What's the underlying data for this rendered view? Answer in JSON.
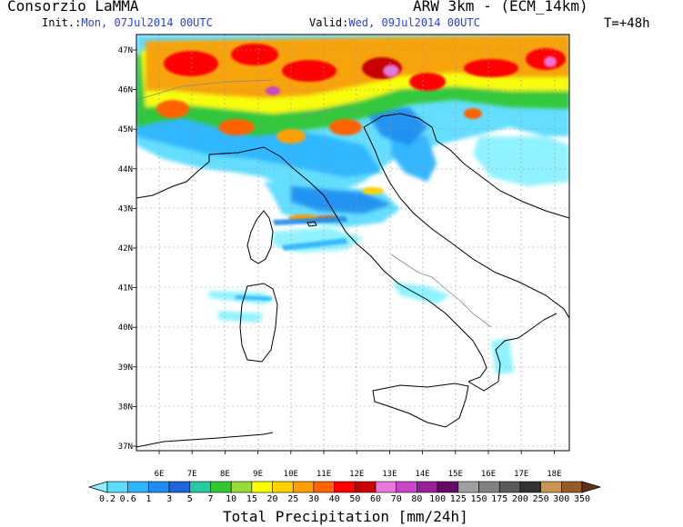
{
  "header": {
    "title": "Consorzio LaMMA",
    "init_label": "Init.:",
    "init_value": "Mon, 07Jul2014 00UTC",
    "valid_label": "Valid:",
    "valid_value": "Wed, 09Jul2014 00UTC",
    "model": "ARW 3km - (ECM_14km)",
    "step": "T=+48h"
  },
  "map": {
    "lat_labels": [
      "47N",
      "46N",
      "45N",
      "44N",
      "43N",
      "42N",
      "41N",
      "40N",
      "39N",
      "38N",
      "37N"
    ],
    "lon_labels": [
      "6E",
      "7E",
      "8E",
      "9E",
      "10E",
      "11E",
      "12E",
      "13E",
      "14E",
      "15E",
      "16E",
      "17E",
      "18E"
    ]
  },
  "colorbar": {
    "title": "Total Precipitation [mm/24h]",
    "levels": [
      "0.2",
      "0.6",
      "1",
      "3",
      "5",
      "7",
      "10",
      "15",
      "20",
      "25",
      "30",
      "40",
      "50",
      "60",
      "70",
      "80",
      "100",
      "125",
      "150",
      "175",
      "200",
      "250",
      "300",
      "350"
    ],
    "colors": [
      "#8cf2ff",
      "#5cdcff",
      "#2cb4ff",
      "#1e8cf0",
      "#1c64dc",
      "#28c8a0",
      "#32c832",
      "#96dc32",
      "#ffff00",
      "#ffd200",
      "#ffa000",
      "#ff6400",
      "#ff0000",
      "#c80000",
      "#e678dc",
      "#c846c8",
      "#961e96",
      "#640a64",
      "#a0a0a0",
      "#828282",
      "#5a5a5a",
      "#323232",
      "#c89650",
      "#965a28",
      "#643214"
    ]
  }
}
